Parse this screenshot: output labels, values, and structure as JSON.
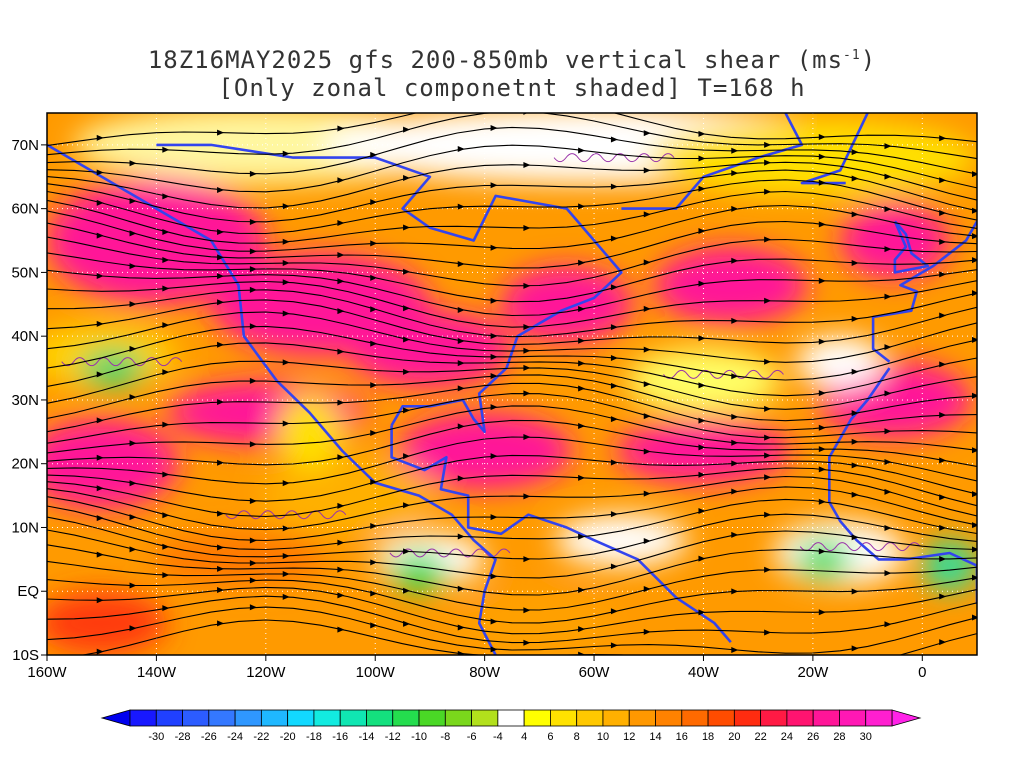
{
  "title": {
    "line1_prefix": "18Z16MAY2025 gfs 200-850mb vertical shear (ms",
    "line1_sup": "-1",
    "line1_suffix": ")",
    "line2": "[Only zonal componetnt shaded] T=168 h"
  },
  "map": {
    "lon_range": [
      -160,
      10
    ],
    "lat_range": [
      -10,
      75
    ],
    "x_ticks": [
      {
        "value": -160,
        "label": "160W"
      },
      {
        "value": -140,
        "label": "140W"
      },
      {
        "value": -120,
        "label": "120W"
      },
      {
        "value": -100,
        "label": "100W"
      },
      {
        "value": -80,
        "label": "80W"
      },
      {
        "value": -60,
        "label": "60W"
      },
      {
        "value": -40,
        "label": "40W"
      },
      {
        "value": -20,
        "label": "20W"
      },
      {
        "value": 0,
        "label": "0"
      }
    ],
    "y_ticks": [
      {
        "value": 70,
        "label": "70N"
      },
      {
        "value": 60,
        "label": "60N"
      },
      {
        "value": 50,
        "label": "50N"
      },
      {
        "value": 40,
        "label": "40N"
      },
      {
        "value": 30,
        "label": "30N"
      },
      {
        "value": 20,
        "label": "20N"
      },
      {
        "value": 10,
        "label": "10N"
      },
      {
        "value": 0,
        "label": "EQ"
      },
      {
        "value": -10,
        "label": "10S"
      }
    ],
    "grid": "dotted white",
    "coastline_color": "#3344ee",
    "contour_color": "#9933aa",
    "streamline_color": "#000000"
  },
  "colorbar": {
    "labels": [
      "-30",
      "-28",
      "-26",
      "-24",
      "-22",
      "-20",
      "-18",
      "-16",
      "-14",
      "-12",
      "-10",
      "-8",
      "-6",
      "-4",
      "4",
      "6",
      "8",
      "10",
      "12",
      "14",
      "16",
      "18",
      "20",
      "22",
      "24",
      "26",
      "28",
      "30"
    ],
    "colors": [
      "#1818ff",
      "#2040ff",
      "#2c5cff",
      "#3478ff",
      "#2f97ff",
      "#1fb8ff",
      "#12d9ff",
      "#12ebe0",
      "#10e6b2",
      "#14e07e",
      "#24dd4e",
      "#4ad826",
      "#7ad71c",
      "#b2e01c",
      "#ffffff",
      "#ffff00",
      "#ffe200",
      "#ffc800",
      "#ffb000",
      "#ff9800",
      "#ff8200",
      "#ff6a00",
      "#ff4c00",
      "#ff2c10",
      "#ff1a44",
      "#ff1470",
      "#ff1598",
      "#ff18b4",
      "#ff1fd0"
    ],
    "under_color": "#0000ee",
    "over_color": "#ff22e8"
  }
}
